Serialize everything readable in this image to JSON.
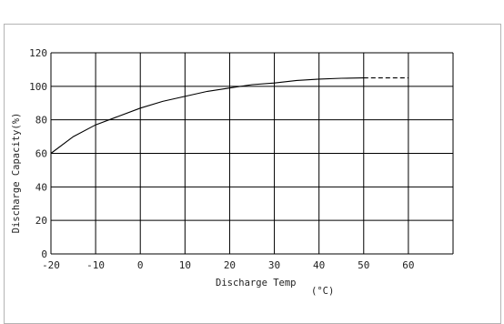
{
  "chart_data": {
    "type": "line",
    "xlabel": "Discharge Temp",
    "xunit": "(°C)",
    "ylabel": "Discharge Capacity(%)",
    "xlim": [
      -20,
      70
    ],
    "ylim": [
      0,
      120
    ],
    "x_ticks": [
      "-20",
      "-10",
      "0",
      "10",
      "20",
      "30",
      "40",
      "50",
      "60"
    ],
    "y_ticks": [
      "0",
      "20",
      "40",
      "60",
      "80",
      "100",
      "120"
    ],
    "grid": true,
    "legend": "none",
    "series": [
      {
        "style": "solid",
        "x": [
          -20,
          -15,
          -10,
          -5,
          0,
          5,
          10,
          15,
          20,
          25,
          30,
          35,
          40,
          45,
          50
        ],
        "y": [
          60,
          70,
          77,
          82,
          87,
          91,
          94,
          97,
          99,
          101,
          102,
          103.5,
          104.3,
          104.8,
          105
        ]
      },
      {
        "style": "dashed",
        "x": [
          50,
          55,
          60
        ],
        "y": [
          105,
          105,
          105
        ]
      }
    ]
  }
}
